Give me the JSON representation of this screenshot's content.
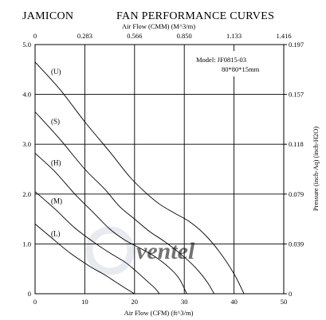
{
  "header": {
    "brand": "JAMICON",
    "title": "FAN PERFORMANCE CURVES"
  },
  "model_box": {
    "line1": "Model:  JF0815-03",
    "line2": "80*80*15mm"
  },
  "watermark": "ventel",
  "chart_data": {
    "type": "line",
    "title": "FAN PERFORMANCE CURVES",
    "xlabel": "Air Flow (CFM) (ft^3/m)",
    "x2label": "Air Flow (CMM) (M^3/m)",
    "ylabel": "",
    "y2label": "Pressure (inch-Aq) (inch-H2O)",
    "xlim": [
      0,
      50
    ],
    "ylim": [
      0,
      5
    ],
    "x_ticks": [
      "0",
      "10",
      "20",
      "30",
      "40",
      "50"
    ],
    "x2_ticks": [
      "0",
      "0.283",
      "0.566",
      "0.850",
      "1.133",
      "1.416"
    ],
    "y_ticks": [
      "0",
      "1.0",
      "2.0",
      "3.0",
      "4.0",
      "5.0"
    ],
    "y2_ticks": [
      "0",
      "0.039",
      "0.079",
      "0.118",
      "0.157",
      "0.197"
    ],
    "grid": true,
    "series": [
      {
        "name": "(U)",
        "points": [
          [
            0,
            4.65
          ],
          [
            5,
            4.1
          ],
          [
            10,
            3.45
          ],
          [
            15,
            2.85
          ],
          [
            19,
            2.35
          ],
          [
            22,
            2.05
          ],
          [
            25,
            1.8
          ],
          [
            28,
            1.62
          ],
          [
            31,
            1.45
          ],
          [
            34,
            1.2
          ],
          [
            37,
            0.85
          ],
          [
            40,
            0.4
          ],
          [
            42,
            0
          ]
        ]
      },
      {
        "name": "(S)",
        "points": [
          [
            0,
            3.65
          ],
          [
            5,
            3.1
          ],
          [
            10,
            2.5
          ],
          [
            14,
            2.1
          ],
          [
            17,
            1.75
          ],
          [
            20,
            1.5
          ],
          [
            23,
            1.25
          ],
          [
            26,
            1.05
          ],
          [
            29,
            0.82
          ],
          [
            32,
            0.55
          ],
          [
            34.5,
            0.25
          ],
          [
            36,
            0
          ]
        ]
      },
      {
        "name": "(H)",
        "points": [
          [
            0,
            2.82
          ],
          [
            4,
            2.45
          ],
          [
            8,
            2.0
          ],
          [
            12,
            1.6
          ],
          [
            15,
            1.3
          ],
          [
            18,
            1.08
          ],
          [
            21,
            0.92
          ],
          [
            24,
            0.75
          ],
          [
            27,
            0.52
          ],
          [
            29,
            0.3
          ],
          [
            30.5,
            0
          ]
        ]
      },
      {
        "name": "(M)",
        "points": [
          [
            0,
            2.05
          ],
          [
            4,
            1.7
          ],
          [
            8,
            1.32
          ],
          [
            12,
            1.02
          ],
          [
            15,
            0.82
          ],
          [
            18,
            0.64
          ],
          [
            20,
            0.48
          ],
          [
            22,
            0.3
          ],
          [
            24,
            0.12
          ],
          [
            25,
            0
          ]
        ]
      },
      {
        "name": "(L)",
        "points": [
          [
            0,
            1.4
          ],
          [
            3,
            1.15
          ],
          [
            7,
            0.82
          ],
          [
            11,
            0.55
          ],
          [
            14,
            0.38
          ],
          [
            16,
            0.25
          ],
          [
            18,
            0.12
          ],
          [
            20,
            0
          ]
        ]
      }
    ]
  }
}
